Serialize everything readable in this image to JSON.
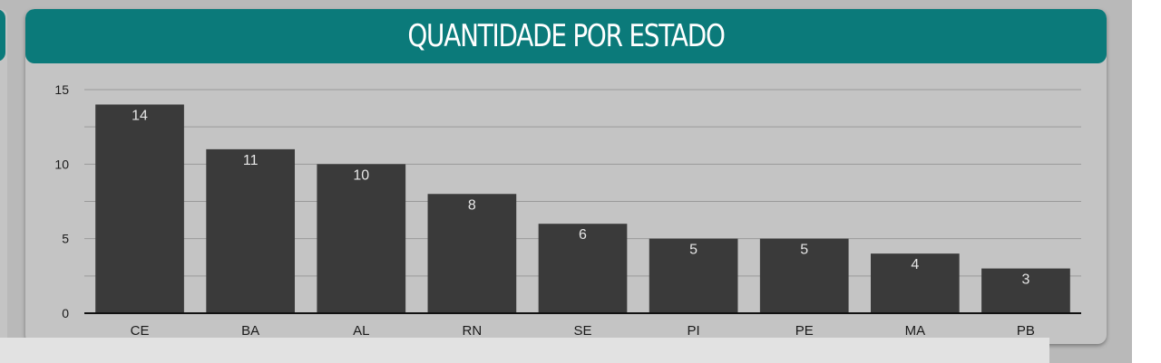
{
  "card": {
    "title": "QUANTIDADE POR ESTADO"
  },
  "colors": {
    "header": "#0b7a7a",
    "bar": "#3a3a3a",
    "grid": "#9a9a9a",
    "card": "#c4c4c4"
  },
  "chart_data": {
    "type": "bar",
    "title": "QUANTIDADE POR ESTADO",
    "categories": [
      "CE",
      "BA",
      "AL",
      "RN",
      "SE",
      "PI",
      "PE",
      "MA",
      "PB"
    ],
    "values": [
      14,
      11,
      10,
      8,
      6,
      5,
      5,
      4,
      3
    ],
    "ylim": [
      0,
      15
    ],
    "yticks": [
      0,
      5,
      10,
      15
    ],
    "grid": true,
    "data_labels": true
  }
}
